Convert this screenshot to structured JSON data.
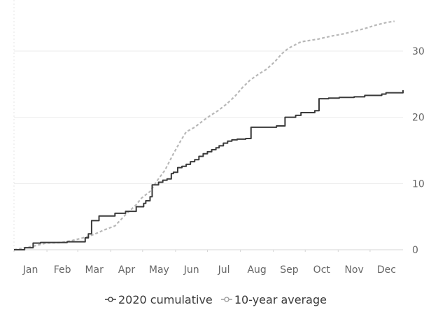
{
  "chart_data": {
    "type": "line",
    "x_months": [
      "Jan",
      "Feb",
      "Mar",
      "Apr",
      "May",
      "Jun",
      "Jul",
      "Aug",
      "Sep",
      "Oct",
      "Nov",
      "Dec"
    ],
    "ylim": [
      0,
      35
    ],
    "yticks": [
      0,
      10,
      20,
      30
    ],
    "xlim": [
      0,
      366
    ],
    "grid": true,
    "legend_position": "bottom",
    "series": [
      {
        "name": "2020 cumulative",
        "color": "#3a3a3a",
        "style": "solid-step",
        "points": [
          [
            0,
            0
          ],
          [
            10,
            0.3
          ],
          [
            18,
            1
          ],
          [
            25,
            1.1
          ],
          [
            35,
            1.1
          ],
          [
            50,
            1.2
          ],
          [
            65,
            1.2
          ],
          [
            67,
            1.8
          ],
          [
            70,
            2.4
          ],
          [
            73,
            4.4
          ],
          [
            80,
            5.1
          ],
          [
            95,
            5.5
          ],
          [
            105,
            5.8
          ],
          [
            115,
            6.5
          ],
          [
            122,
            7
          ],
          [
            124,
            7.4
          ],
          [
            128,
            8
          ],
          [
            130,
            9.8
          ],
          [
            136,
            10.2
          ],
          [
            140,
            10.5
          ],
          [
            144,
            10.7
          ],
          [
            148,
            11.5
          ],
          [
            150,
            11.7
          ],
          [
            154,
            12.4
          ],
          [
            158,
            12.6
          ],
          [
            162,
            12.9
          ],
          [
            166,
            13.3
          ],
          [
            170,
            13.6
          ],
          [
            174,
            14.1
          ],
          [
            178,
            14.5
          ],
          [
            182,
            14.8
          ],
          [
            186,
            15.1
          ],
          [
            190,
            15.4
          ],
          [
            193,
            15.7
          ],
          [
            197,
            16.1
          ],
          [
            201,
            16.4
          ],
          [
            205,
            16.6
          ],
          [
            210,
            16.7
          ],
          [
            218,
            16.8
          ],
          [
            223,
            18.5
          ],
          [
            240,
            18.5
          ],
          [
            247,
            18.7
          ],
          [
            255,
            20
          ],
          [
            265,
            20.3
          ],
          [
            270,
            20.7
          ],
          [
            283,
            21
          ],
          [
            287,
            22.8
          ],
          [
            296,
            22.9
          ],
          [
            306,
            23
          ],
          [
            320,
            23.1
          ],
          [
            330,
            23.3
          ],
          [
            339,
            23.3
          ],
          [
            346,
            23.5
          ],
          [
            350,
            23.7
          ],
          [
            366,
            24.1
          ]
        ]
      },
      {
        "name": "10-year average",
        "color": "#b8b8b8",
        "style": "dotted",
        "points": [
          [
            0,
            0
          ],
          [
            10,
            0.3
          ],
          [
            20,
            0.6
          ],
          [
            30,
            1
          ],
          [
            45,
            1.1
          ],
          [
            55,
            1.4
          ],
          [
            65,
            1.8
          ],
          [
            75,
            2.3
          ],
          [
            85,
            3.0
          ],
          [
            95,
            3.6
          ],
          [
            105,
            5.3
          ],
          [
            115,
            6.8
          ],
          [
            120,
            7.8
          ],
          [
            128,
            8.8
          ],
          [
            135,
            10.5
          ],
          [
            142,
            12.0
          ],
          [
            150,
            14.5
          ],
          [
            157,
            16.5
          ],
          [
            162,
            17.8
          ],
          [
            170,
            18.5
          ],
          [
            178,
            19.5
          ],
          [
            185,
            20.3
          ],
          [
            192,
            21
          ],
          [
            200,
            22
          ],
          [
            208,
            23.2
          ],
          [
            215,
            24.5
          ],
          [
            222,
            25.6
          ],
          [
            230,
            26.5
          ],
          [
            238,
            27.3
          ],
          [
            246,
            28.5
          ],
          [
            252,
            29.6
          ],
          [
            258,
            30.4
          ],
          [
            264,
            30.9
          ],
          [
            270,
            31.4
          ],
          [
            278,
            31.6
          ],
          [
            286,
            31.8
          ],
          [
            294,
            32.1
          ],
          [
            300,
            32.3
          ],
          [
            310,
            32.6
          ],
          [
            320,
            33
          ],
          [
            330,
            33.4
          ],
          [
            340,
            33.9
          ],
          [
            350,
            34.3
          ],
          [
            358,
            34.5
          ]
        ]
      }
    ]
  },
  "legend": {
    "items": [
      {
        "label": "2020 cumulative"
      },
      {
        "label": "10-year average"
      }
    ]
  }
}
